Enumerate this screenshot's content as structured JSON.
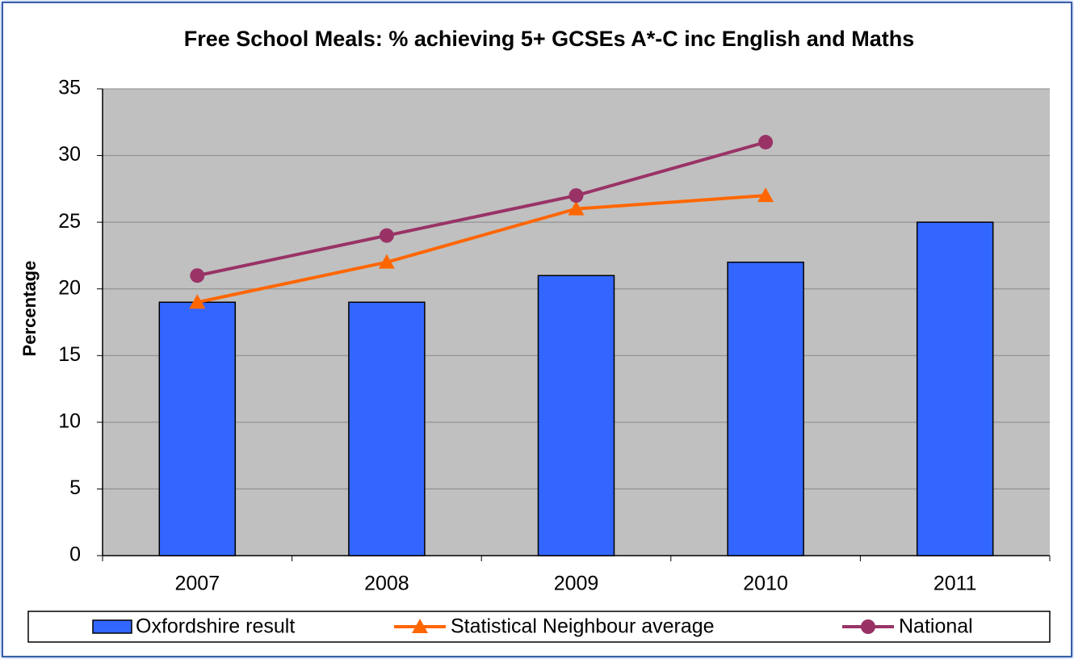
{
  "chart_data": {
    "type": "bar",
    "title": "Free School Meals: % achieving 5+ GCSEs A*-C inc English and Maths",
    "y_label": "Percentage",
    "categories": [
      "2007",
      "2008",
      "2009",
      "2010",
      "2011"
    ],
    "series": [
      {
        "name": "Oxfordshire result",
        "type": "bar",
        "color": "#3366ff",
        "values": [
          19,
          19,
          21,
          22,
          25
        ]
      },
      {
        "name": "Statistical Neighbour average",
        "type": "line",
        "marker": "triangle",
        "color": "#ff6600",
        "values": [
          19,
          22,
          26,
          27,
          null
        ]
      },
      {
        "name": "National",
        "type": "line",
        "marker": "circle",
        "color": "#993366",
        "values": [
          21,
          24,
          27,
          31,
          null
        ]
      }
    ],
    "ylim": [
      0,
      35
    ],
    "yticks": [
      0,
      5,
      10,
      15,
      20,
      25,
      30,
      35
    ],
    "grid": true,
    "legend": "bottom"
  }
}
